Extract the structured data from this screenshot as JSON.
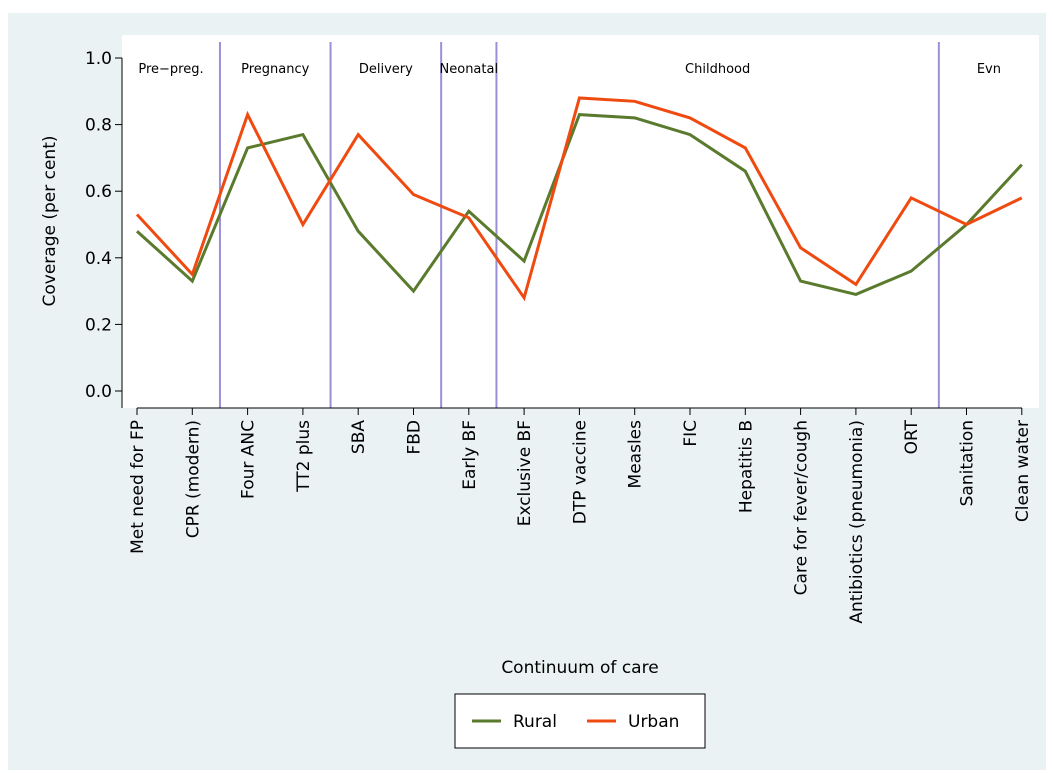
{
  "chart_data": {
    "type": "line",
    "title": "",
    "xlabel": "Continuum of care",
    "ylabel": "Coverage (per cent)",
    "ylim": [
      0,
      1
    ],
    "yticks": [
      "0.0",
      "0.2",
      "0.4",
      "0.6",
      "0.8",
      "1.0"
    ],
    "categories": [
      "Met need for FP",
      "CPR (modern)",
      "Four ANC",
      "TT2 plus",
      "SBA",
      "FBD",
      "Early BF",
      "Exclusive BF",
      "DTP vaccine",
      "Measles",
      "FIC",
      "Hepatitis B",
      "Care for fever/cough",
      "Antibiotics (pneumonia)",
      "ORT",
      "Sanitation",
      "Clean water"
    ],
    "series": [
      {
        "name": "Rural",
        "color": "#5a7a2e",
        "values": [
          0.48,
          0.33,
          0.73,
          0.77,
          0.48,
          0.3,
          0.54,
          0.39,
          0.83,
          0.82,
          0.77,
          0.66,
          0.33,
          0.29,
          0.36,
          0.5,
          0.68
        ]
      },
      {
        "name": "Urban",
        "color": "#ef4a10",
        "values": [
          0.53,
          0.35,
          0.83,
          0.5,
          0.77,
          0.59,
          0.52,
          0.28,
          0.88,
          0.87,
          0.82,
          0.73,
          0.43,
          0.32,
          0.58,
          0.5,
          0.58
        ]
      }
    ],
    "phases": [
      {
        "label": "Pre−preg.",
        "from": 0,
        "to": 1
      },
      {
        "label": "Pregnancy",
        "from": 2,
        "to": 3
      },
      {
        "label": "Delivery",
        "from": 4,
        "to": 5
      },
      {
        "label": "Neonatal",
        "from": 6,
        "to": 6
      },
      {
        "label": "Childhood",
        "from": 7,
        "to": 14
      },
      {
        "label": "Evn",
        "from": 15,
        "to": 16
      }
    ],
    "legend": {
      "position": "bottom"
    },
    "grid": false,
    "colors": {
      "background": "#eaf2f3",
      "plot": "#ffffff",
      "divider": "#9a90d8",
      "axis": "#000000"
    }
  }
}
